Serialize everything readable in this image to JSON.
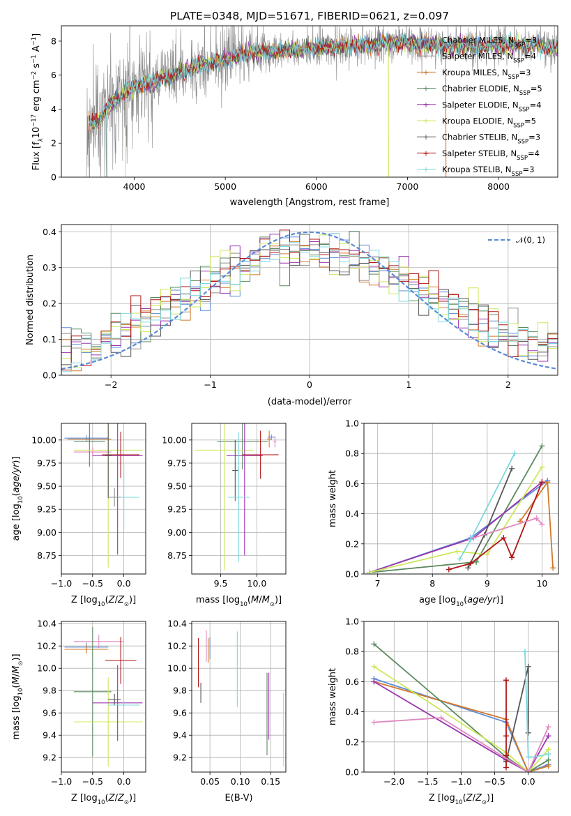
{
  "colors": {
    "chabrier_miles": "#5b8bd6",
    "salpeter_miles": "#909090",
    "kroupa_miles": "#d2782a",
    "chabrier_elodie": "#5a8a5e",
    "salpeter_elodie": "#9a35b0",
    "kroupa_elodie": "#cce85a",
    "chabrier_stelib": "#555555",
    "salpeter_stelib": "#b01515",
    "kroupa_stelib": "#7dd8de",
    "pink": "#e088c0",
    "normal": "#5b8bd6"
  },
  "spectrum_legend": [
    {
      "key": "chabrier_miles",
      "label": "Chabrier MILES, N",
      "sub": "SSP",
      "suffix": "=3"
    },
    {
      "key": "salpeter_miles",
      "label": "Salpeter MILES, N",
      "sub": "SSP",
      "suffix": "=4"
    },
    {
      "key": "kroupa_miles",
      "label": "Kroupa MILES, N",
      "sub": "SSP",
      "suffix": "=3"
    },
    {
      "key": "chabrier_elodie",
      "label": "Chabrier ELODIE, N",
      "sub": "SSP",
      "suffix": "=5"
    },
    {
      "key": "salpeter_elodie",
      "label": "Salpeter ELODIE, N",
      "sub": "SSP",
      "suffix": "=4"
    },
    {
      "key": "kroupa_elodie",
      "label": "Kroupa ELODIE, N",
      "sub": "SSP",
      "suffix": "=5"
    },
    {
      "key": "chabrier_stelib",
      "label": "Chabrier STELIB, N",
      "sub": "SSP",
      "suffix": "=3"
    },
    {
      "key": "salpeter_stelib",
      "label": "Salpeter STELIB, N",
      "sub": "SSP",
      "suffix": "=4"
    },
    {
      "key": "kroupa_stelib",
      "label": "Kroupa STELIB, N",
      "sub": "SSP",
      "suffix": "=3"
    }
  ],
  "chart_data": [
    {
      "id": "spectrum",
      "type": "line",
      "title": "PLATE=0348, MJD=51671, FIBERID=0621, z=0.097",
      "xlabel": "wavelength [Angstrom, rest frame]",
      "ylabel": "Flux [f_λ10^-17 erg cm^-2 s^-1 A^-1]",
      "xlim": [
        3200,
        8650
      ],
      "ylim": [
        0,
        8.9
      ],
      "xticks": [
        4000,
        5000,
        6000,
        7000,
        8000
      ],
      "yticks": [
        0,
        2,
        4,
        6,
        8
      ],
      "grid": false,
      "legend": "right",
      "continuum": {
        "x": [
          3500,
          3600,
          3700,
          3800,
          3900,
          4000,
          4100,
          4200,
          4300,
          4400,
          4500,
          4700,
          4900,
          5100,
          5300,
          5500,
          5700,
          6000,
          6300,
          6600,
          6900,
          7200,
          7500,
          7800,
          8100,
          8400,
          8650
        ],
        "y": [
          3.0,
          3.3,
          4.1,
          4.5,
          4.9,
          5.3,
          5.5,
          5.6,
          5.8,
          5.9,
          6.2,
          6.5,
          6.8,
          7.1,
          7.3,
          7.4,
          7.5,
          7.6,
          7.7,
          7.8,
          7.9,
          7.8,
          7.7,
          7.7,
          7.8,
          7.8,
          7.5
        ]
      },
      "observed_range": [
        3480,
        8650
      ]
    },
    {
      "id": "residuals",
      "type": "histogram",
      "xlabel": "(data-model)/error",
      "ylabel": "Normed distribution",
      "xlim": [
        -2.5,
        2.5
      ],
      "ylim": [
        0,
        0.42
      ],
      "xticks": [
        -2,
        -1,
        0,
        1,
        2
      ],
      "yticks": [
        0,
        0.1,
        0.2,
        0.3,
        0.4
      ],
      "grid": true,
      "legend": "top-right",
      "legend_label": "𝒩(0, 1)",
      "bin_width": 0.1
    },
    {
      "id": "age_vs_Z",
      "type": "errorbar",
      "xlabel": "Z [log10(Z/Z☉)]",
      "ylabel": "age  [log10(age/yr)]",
      "xlim": [
        -1.0,
        0.35
      ],
      "ylim": [
        8.55,
        10.18
      ],
      "xticks": [
        -1.0,
        -0.5,
        0.0
      ],
      "yticks": [
        8.75,
        9.0,
        9.25,
        9.5,
        9.75,
        10.0
      ],
      "points": [
        {
          "c": "chabrier_miles",
          "x": -0.6,
          "y": 10.02,
          "xe": 0.35,
          "ye": 0.03
        },
        {
          "c": "kroupa_miles",
          "x": -0.55,
          "y": 10.01,
          "xe": 0.35,
          "ye": 0.03
        },
        {
          "c": "pink",
          "x": -0.5,
          "y": 9.87,
          "xe": 0.3,
          "ye": 0.05
        },
        {
          "c": "chabrier_elodie",
          "x": -0.55,
          "y": 9.98,
          "xe": 0.25,
          "ye": 0.27
        },
        {
          "c": "kroupa_elodie",
          "x": -0.25,
          "y": 9.89,
          "xe": 0.55,
          "ye": 1.27
        },
        {
          "c": "salpeter_elodie",
          "x": -0.1,
          "y": 9.83,
          "xe": 0.4,
          "ye": 1.07
        },
        {
          "c": "salpeter_stelib",
          "x": -0.05,
          "y": 9.84,
          "xe": 0.3,
          "ye": 0.25
        },
        {
          "c": "chabrier_stelib",
          "x": -0.25,
          "y": 9.83,
          "xe": 0.05,
          "ye": 0.46
        },
        {
          "c": "kroupa_stelib",
          "x": 0.0,
          "y": 9.38,
          "xe": 0.25,
          "ye": 0.35
        },
        {
          "c": "salpeter_miles",
          "x": -0.15,
          "y": 9.38,
          "xe": 0.1,
          "ye": 0.1
        }
      ]
    },
    {
      "id": "age_vs_mass",
      "type": "errorbar",
      "xlabel": "mass [log10(M/M☉)]",
      "ylabel": "",
      "xlim": [
        9.1,
        10.4
      ],
      "ylim": [
        8.55,
        10.18
      ],
      "xticks": [
        9.5,
        10.0
      ],
      "yticks": [
        8.75,
        9.0,
        9.25,
        9.5,
        9.75,
        10.0
      ],
      "points": [
        {
          "c": "chabrier_miles",
          "x": 10.2,
          "y": 10.03,
          "xe": 0.05,
          "ye": 0.03
        },
        {
          "c": "kroupa_miles",
          "x": 10.17,
          "y": 10.01,
          "xe": 0.03,
          "ye": 0.09
        },
        {
          "c": "chabrier_elodie",
          "x": 9.8,
          "y": 9.98,
          "xe": 0.35,
          "ye": 0.3
        },
        {
          "c": "kroupa_elodie",
          "x": 9.55,
          "y": 9.89,
          "xe": 0.4,
          "ye": 1.3
        },
        {
          "c": "salpeter_elodie",
          "x": 9.83,
          "y": 9.83,
          "xe": 0.25,
          "ye": 1.08
        },
        {
          "c": "salpeter_stelib",
          "x": 10.05,
          "y": 9.84,
          "xe": 0.25,
          "ye": 0.26
        },
        {
          "c": "chabrier_stelib",
          "x": 9.7,
          "y": 9.67,
          "xe": 0.04,
          "ye": 0.33
        },
        {
          "c": "kroupa_stelib",
          "x": 9.75,
          "y": 9.38,
          "xe": 0.15,
          "ye": 0.7
        },
        {
          "c": "pink",
          "x": 10.25,
          "y": 9.98,
          "xe": 0.02,
          "ye": 0.06
        }
      ]
    },
    {
      "id": "weight_vs_age",
      "type": "line",
      "xlabel": "age  [log10(age/yr)]",
      "ylabel": "mass weight",
      "xlim": [
        6.75,
        10.3
      ],
      "ylim": [
        0,
        1.0
      ],
      "xticks": [
        7,
        8,
        9,
        10
      ],
      "yticks": [
        0,
        0.2,
        0.4,
        0.6,
        0.8,
        1.0
      ],
      "series": [
        {
          "c": "chabrier_miles",
          "x": [
            6.85,
            8.7,
            10.1
          ],
          "y": [
            0.01,
            0.24,
            0.62
          ]
        },
        {
          "c": "kroupa_miles",
          "x": [
            9.6,
            10.1,
            10.2
          ],
          "y": [
            0.35,
            0.61,
            0.04
          ]
        },
        {
          "c": "chabrier_elodie",
          "x": [
            6.85,
            8.8,
            10.0
          ],
          "y": [
            0.01,
            0.08,
            0.85
          ]
        },
        {
          "c": "salpeter_elodie",
          "x": [
            6.85,
            8.75,
            10.0
          ],
          "y": [
            0.01,
            0.24,
            0.61
          ]
        },
        {
          "c": "kroupa_elodie",
          "x": [
            6.85,
            8.45,
            9.0,
            10.0
          ],
          "y": [
            0.01,
            0.15,
            0.13,
            0.71
          ]
        },
        {
          "c": "chabrier_stelib",
          "x": [
            8.65,
            8.95,
            9.45
          ],
          "y": [
            0.04,
            0.26,
            0.7
          ]
        },
        {
          "c": "salpeter_stelib",
          "x": [
            8.3,
            8.7,
            9.3,
            9.45,
            10.0
          ],
          "y": [
            0.03,
            0.07,
            0.24,
            0.11,
            0.61
          ]
        },
        {
          "c": "kroupa_stelib",
          "x": [
            8.5,
            8.7,
            9.5
          ],
          "y": [
            0.1,
            0.23,
            0.8
          ]
        },
        {
          "c": "pink",
          "x": [
            8.75,
            9.9,
            10.0
          ],
          "y": [
            0.24,
            0.37,
            0.33
          ]
        }
      ]
    },
    {
      "id": "mass_vs_Z",
      "type": "errorbar",
      "xlabel": "Z [log10(Z/Z☉)]",
      "ylabel": "mass [log10(M/M☉)]",
      "xlim": [
        -1.0,
        0.35
      ],
      "ylim": [
        9.07,
        10.42
      ],
      "xticks": [
        -1.0,
        -0.5,
        0.0
      ],
      "yticks": [
        9.2,
        9.4,
        9.6,
        9.8,
        10.0,
        10.2,
        10.4
      ],
      "points": [
        {
          "c": "chabrier_miles",
          "x": -0.6,
          "y": 10.19,
          "xe": 0.35,
          "ye": 0.04
        },
        {
          "c": "kroupa_miles",
          "x": -0.6,
          "y": 10.17,
          "xe": 0.35,
          "ye": 0.04
        },
        {
          "c": "pink",
          "x": -0.4,
          "y": 10.24,
          "xe": 0.4,
          "ye": 0.06
        },
        {
          "c": "chabrier_elodie",
          "x": -0.5,
          "y": 9.79,
          "xe": 0.3,
          "ye": 0.58
        },
        {
          "c": "kroupa_elodie",
          "x": -0.25,
          "y": 9.52,
          "xe": 0.55,
          "ye": 0.4
        },
        {
          "c": "salpeter_elodie",
          "x": -0.1,
          "y": 9.69,
          "xe": 0.4,
          "ye": 0.34
        },
        {
          "c": "salpeter_stelib",
          "x": -0.05,
          "y": 10.07,
          "xe": 0.25,
          "ye": 0.21
        },
        {
          "c": "chabrier_stelib",
          "x": -0.15,
          "y": 9.72,
          "xe": 0.1,
          "ye": 0.05
        },
        {
          "c": "kroupa_stelib",
          "x": 0.0,
          "y": 9.67,
          "xe": 0.25,
          "ye": 0.03
        }
      ]
    },
    {
      "id": "mass_vs_ebv",
      "type": "errorbar",
      "xlabel": "E(B-V)",
      "ylabel": "",
      "xlim": [
        0.02,
        0.175
      ],
      "ylim": [
        9.07,
        10.42
      ],
      "xticks": [
        0.05,
        0.1,
        0.15
      ],
      "yticks": [
        9.2,
        9.4,
        9.6,
        9.8,
        10.0,
        10.2,
        10.4
      ],
      "points": [
        {
          "c": "salpeter_stelib",
          "x": 0.031,
          "y": 10.05,
          "xe": 0.0,
          "ye": 0.22
        },
        {
          "c": "chabrier_stelib",
          "x": 0.035,
          "y": 9.78,
          "xe": 0.0,
          "ye": 0.09
        },
        {
          "c": "pink",
          "x": 0.044,
          "y": 10.2,
          "xe": 0.0,
          "ye": 0.14
        },
        {
          "c": "chabrier_miles",
          "x": 0.05,
          "y": 10.18,
          "xe": 0.0,
          "ye": 0.1
        },
        {
          "c": "kroupa_miles",
          "x": 0.047,
          "y": 10.16,
          "xe": 0.0,
          "ye": 0.11
        },
        {
          "c": "kroupa_stelib",
          "x": 0.095,
          "y": 9.99,
          "xe": 0.0,
          "ye": 0.34
        },
        {
          "c": "chabrier_elodie",
          "x": 0.144,
          "y": 9.59,
          "xe": 0.0,
          "ye": 0.37
        },
        {
          "c": "salpeter_elodie",
          "x": 0.147,
          "y": 9.66,
          "xe": 0.0,
          "ye": 0.3
        },
        {
          "c": "kroupa_elodie",
          "x": 0.171,
          "y": 9.45,
          "xe": 0.0,
          "ye": 0.33
        }
      ]
    },
    {
      "id": "weight_vs_Z",
      "type": "line",
      "xlabel": "Z [log10(Z/Z☉)]",
      "ylabel": "mass weight",
      "xlim": [
        -2.45,
        0.45
      ],
      "ylim": [
        0,
        1.0
      ],
      "xticks": [
        -2.0,
        -1.5,
        -1.0,
        -0.5,
        0.0
      ],
      "yticks": [
        0,
        0.2,
        0.4,
        0.6,
        0.8,
        1.0
      ],
      "series": [
        {
          "c": "chabrier_miles",
          "x": [
            -2.3,
            -0.33,
            0.0,
            0.3
          ],
          "y": [
            0.62,
            0.33,
            0.0,
            0.05
          ]
        },
        {
          "c": "kroupa_miles",
          "x": [
            -2.3,
            -0.33,
            0.0,
            0.3
          ],
          "y": [
            0.6,
            0.35,
            0.0,
            0.04
          ]
        },
        {
          "c": "chabrier_elodie",
          "x": [
            -2.3,
            -0.33,
            0.0,
            0.3
          ],
          "y": [
            0.85,
            0.1,
            0.0,
            0.08
          ]
        },
        {
          "c": "salpeter_elodie",
          "x": [
            -2.3,
            -0.33,
            0.0,
            0.3
          ],
          "y": [
            0.6,
            0.08,
            0.0,
            0.24
          ]
        },
        {
          "c": "kroupa_elodie",
          "x": [
            -2.3,
            -0.33,
            0.0,
            0.3
          ],
          "y": [
            0.7,
            0.13,
            0.0,
            0.15
          ]
        },
        {
          "c": "chabrier_stelib",
          "x": [
            -0.33,
            0.0,
            0.0
          ],
          "y": [
            0.07,
            0.7,
            0.26
          ]
        },
        {
          "c": "salpeter_stelib",
          "x": [
            -0.33,
            -0.33,
            -0.33,
            -0.33
          ],
          "y": [
            0.03,
            0.24,
            0.61,
            0.11
          ]
        },
        {
          "c": "kroupa_stelib",
          "x": [
            -0.05,
            0.0,
            0.1,
            0.3
          ],
          "y": [
            0.8,
            0.1,
            0.1,
            0.12
          ]
        },
        {
          "c": "pink",
          "x": [
            -2.3,
            -1.3,
            0.0,
            0.3
          ],
          "y": [
            0.33,
            0.36,
            0.0,
            0.3
          ]
        }
      ]
    }
  ]
}
